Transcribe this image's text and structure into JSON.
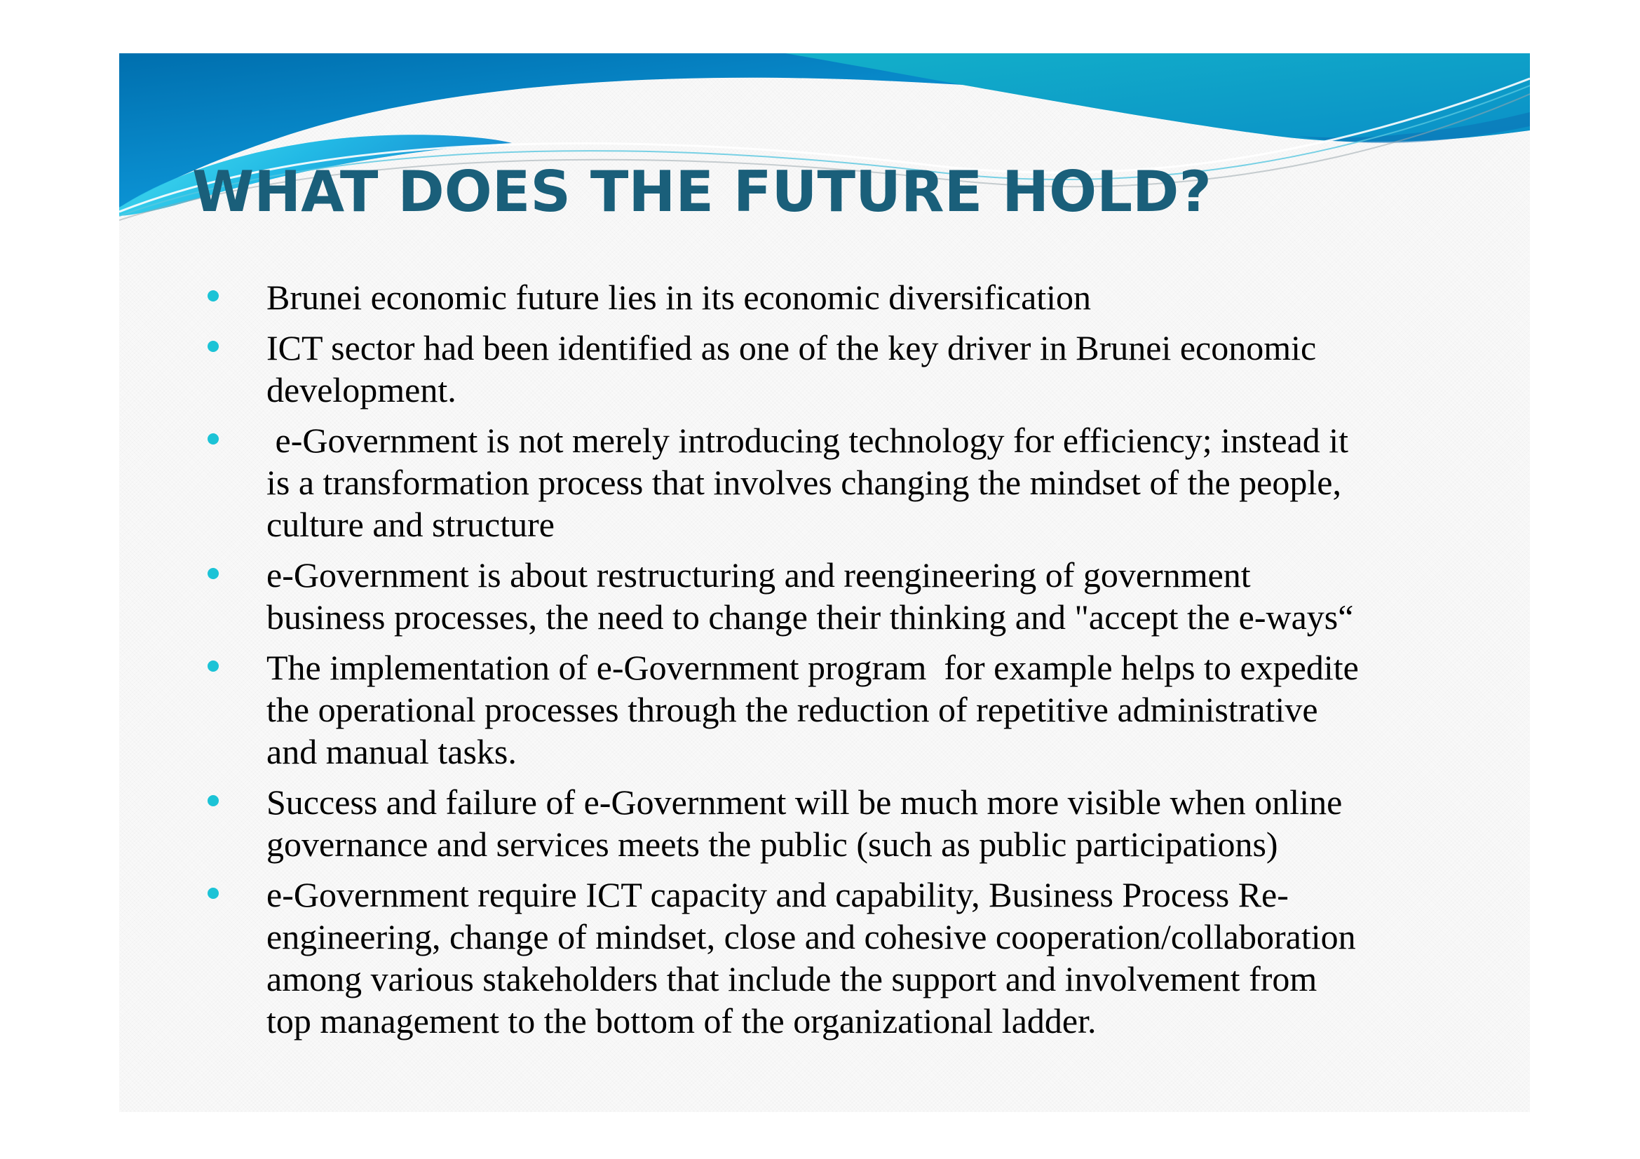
{
  "slide": {
    "title": "WHAT DOES THE FUTURE HOLD?",
    "colors": {
      "title": "#1a5f7a",
      "bullet_marker": "#1cc3d6",
      "banner_dark": "#0078b8",
      "banner_light": "#3dd6ea"
    },
    "bullets": [
      {
        "marker_icon": "filled-circle-bullet",
        "lines": [
          "Brunei economic future lies in its economic diversification"
        ]
      },
      {
        "marker_icon": "filled-circle-bullet",
        "lines": [
          "ICT sector had been identified as one of the key driver in Brunei economic",
          "development."
        ]
      },
      {
        "marker_icon": "filled-circle-bullet",
        "lines": [
          " e-Government is not merely introducing technology for efficiency; instead it",
          "is a transformation process that involves changing the mindset of the people,",
          "culture and structure"
        ]
      },
      {
        "marker_icon": "filled-circle-bullet",
        "lines": [
          "e-Government is about restructuring and reengineering of government",
          "business processes, the need to change their thinking and \"accept the e-ways“"
        ]
      },
      {
        "marker_icon": "filled-circle-bullet",
        "lines": [
          "The implementation of e-Government program  for example helps to expedite",
          "the operational processes through the reduction of repetitive administrative",
          "and manual tasks."
        ]
      },
      {
        "marker_icon": "filled-circle-bullet",
        "lines": [
          "Success and failure of e-Government will be much more visible when online",
          "governance and services meets the public (such as public participations)"
        ]
      },
      {
        "marker_icon": "filled-circle-bullet",
        "lines": [
          "e-Government require ICT capacity and capability, Business Process Re-",
          "engineering, change of mindset, close and cohesive cooperation/collaboration",
          "among various stakeholders that include the support and involvement from",
          "top management to the bottom of the organizational ladder."
        ]
      }
    ]
  }
}
